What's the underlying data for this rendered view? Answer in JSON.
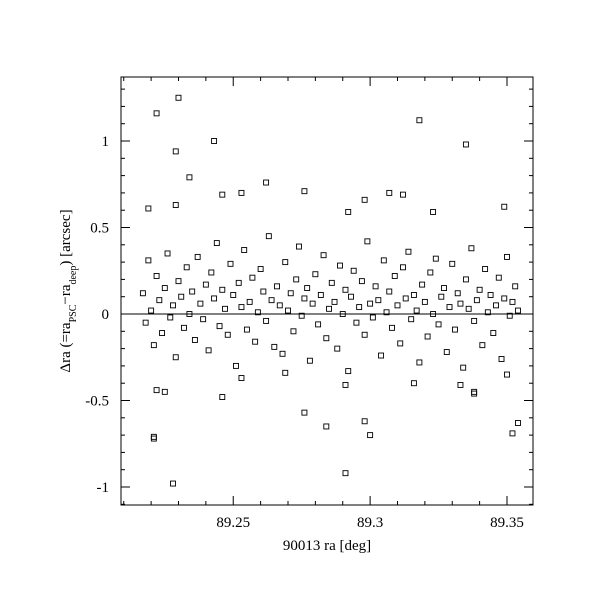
{
  "chart_data": {
    "type": "scatter",
    "xlabel": "90013 ra [deg]",
    "ylabel": {
      "parts": [
        "Δra (=ra",
        "PSC",
        "−ra",
        "deep",
        ") [arcsec]"
      ]
    },
    "xlim": [
      89.209,
      89.3595
    ],
    "ylim": [
      -1.104,
      1.37
    ],
    "xticks": [
      89.25,
      89.3,
      89.35
    ],
    "yticks": [
      -1,
      -0.5,
      0,
      0.5,
      1
    ],
    "xminorticks": [
      89.21,
      89.22,
      89.23,
      89.24,
      89.26,
      89.27,
      89.28,
      89.29,
      89.31,
      89.32,
      89.33,
      89.34
    ],
    "yminorticks": [
      -1.1,
      -0.9,
      -0.8,
      -0.7,
      -0.6,
      -0.4,
      -0.3,
      -0.2,
      -0.1,
      0.1,
      0.2,
      0.3,
      0.4,
      0.6,
      0.7,
      0.8,
      0.9,
      1.1,
      1.2,
      1.3
    ],
    "hline": 0,
    "color": "#000000",
    "x": [
      89.217,
      89.218,
      89.219,
      89.22,
      89.221,
      89.222,
      89.223,
      89.224,
      89.225,
      89.226,
      89.227,
      89.228,
      89.229,
      89.23,
      89.231,
      89.232,
      89.233,
      89.234,
      89.235,
      89.236,
      89.237,
      89.238,
      89.239,
      89.24,
      89.241,
      89.242,
      89.243,
      89.244,
      89.245,
      89.246,
      89.247,
      89.248,
      89.249,
      89.25,
      89.251,
      89.252,
      89.253,
      89.254,
      89.255,
      89.256,
      89.257,
      89.258,
      89.259,
      89.26,
      89.261,
      89.262,
      89.263,
      89.264,
      89.265,
      89.266,
      89.267,
      89.268,
      89.269,
      89.27,
      89.271,
      89.272,
      89.273,
      89.274,
      89.275,
      89.276,
      89.277,
      89.278,
      89.279,
      89.28,
      89.281,
      89.282,
      89.283,
      89.284,
      89.285,
      89.286,
      89.287,
      89.288,
      89.289,
      89.29,
      89.291,
      89.292,
      89.293,
      89.294,
      89.295,
      89.296,
      89.297,
      89.298,
      89.299,
      89.3,
      89.301,
      89.302,
      89.303,
      89.304,
      89.305,
      89.306,
      89.307,
      89.308,
      89.309,
      89.31,
      89.311,
      89.312,
      89.313,
      89.314,
      89.315,
      89.316,
      89.317,
      89.318,
      89.319,
      89.32,
      89.321,
      89.322,
      89.323,
      89.324,
      89.325,
      89.326,
      89.327,
      89.328,
      89.329,
      89.33,
      89.331,
      89.332,
      89.333,
      89.334,
      89.335,
      89.336,
      89.337,
      89.338,
      89.339,
      89.34,
      89.341,
      89.342,
      89.343,
      89.344,
      89.345,
      89.346,
      89.347,
      89.348,
      89.349,
      89.35,
      89.351,
      89.352,
      89.353,
      89.354,
      89.23,
      89.222,
      89.318,
      89.243,
      89.335,
      89.229,
      89.234,
      89.262,
      89.276,
      89.312,
      89.307,
      89.349,
      89.229,
      89.219,
      89.246,
      89.253,
      89.298,
      89.292,
      89.323,
      89.228,
      89.291,
      89.221,
      89.221,
      89.352,
      89.354,
      89.298,
      89.3,
      89.284,
      89.276,
      89.246,
      89.338,
      89.338,
      89.225,
      89.222,
      89.291,
      89.316,
      89.333,
      89.269,
      89.253,
      89.35
    ],
    "values": [
      0.12,
      -0.05,
      0.31,
      0.02,
      -0.18,
      0.22,
      0.08,
      -0.11,
      0.15,
      0.35,
      -0.02,
      0.05,
      -0.25,
      0.19,
      0.1,
      -0.08,
      0.27,
      0.0,
      0.13,
      -0.15,
      0.33,
      0.06,
      -0.03,
      0.17,
      -0.21,
      0.24,
      0.09,
      0.41,
      -0.07,
      0.14,
      0.03,
      -0.12,
      0.29,
      0.11,
      -0.3,
      0.18,
      0.04,
      0.37,
      -0.09,
      0.07,
      0.21,
      -0.16,
      0.01,
      0.26,
      0.13,
      -0.04,
      0.45,
      0.08,
      -0.19,
      0.16,
      0.05,
      -0.23,
      0.3,
      0.02,
      0.12,
      -0.1,
      0.2,
      0.39,
      -0.01,
      0.09,
      0.15,
      -0.27,
      0.06,
      0.23,
      -0.06,
      0.11,
      0.34,
      -0.14,
      0.03,
      0.18,
      0.07,
      -0.2,
      0.28,
      0.0,
      0.14,
      -0.33,
      0.1,
      0.25,
      -0.05,
      0.04,
      0.19,
      -0.12,
      0.42,
      0.06,
      -0.02,
      0.16,
      0.08,
      -0.24,
      0.31,
      0.01,
      0.13,
      -0.08,
      0.22,
      0.05,
      -0.17,
      0.27,
      0.09,
      0.36,
      -0.03,
      0.11,
      0.02,
      -0.28,
      0.17,
      0.07,
      -0.13,
      0.24,
      0.0,
      0.32,
      -0.06,
      0.1,
      0.15,
      -0.22,
      0.04,
      0.29,
      -0.09,
      0.12,
      0.06,
      -0.31,
      0.2,
      0.03,
      0.38,
      -0.04,
      0.08,
      0.14,
      -0.18,
      0.26,
      0.01,
      0.11,
      -0.11,
      0.05,
      0.21,
      -0.26,
      0.09,
      0.33,
      -0.01,
      0.07,
      0.16,
      0.02,
      1.25,
      1.16,
      1.12,
      1.0,
      0.98,
      0.94,
      0.79,
      0.76,
      0.71,
      0.69,
      0.7,
      0.62,
      0.63,
      0.61,
      0.69,
      0.7,
      0.66,
      0.59,
      0.59,
      -0.98,
      -0.92,
      -0.71,
      -0.72,
      -0.69,
      -0.63,
      -0.62,
      -0.7,
      -0.65,
      -0.57,
      -0.48,
      -0.45,
      -0.46,
      -0.45,
      -0.44,
      -0.41,
      -0.4,
      -0.41,
      -0.34,
      -0.37,
      -0.35
    ]
  }
}
